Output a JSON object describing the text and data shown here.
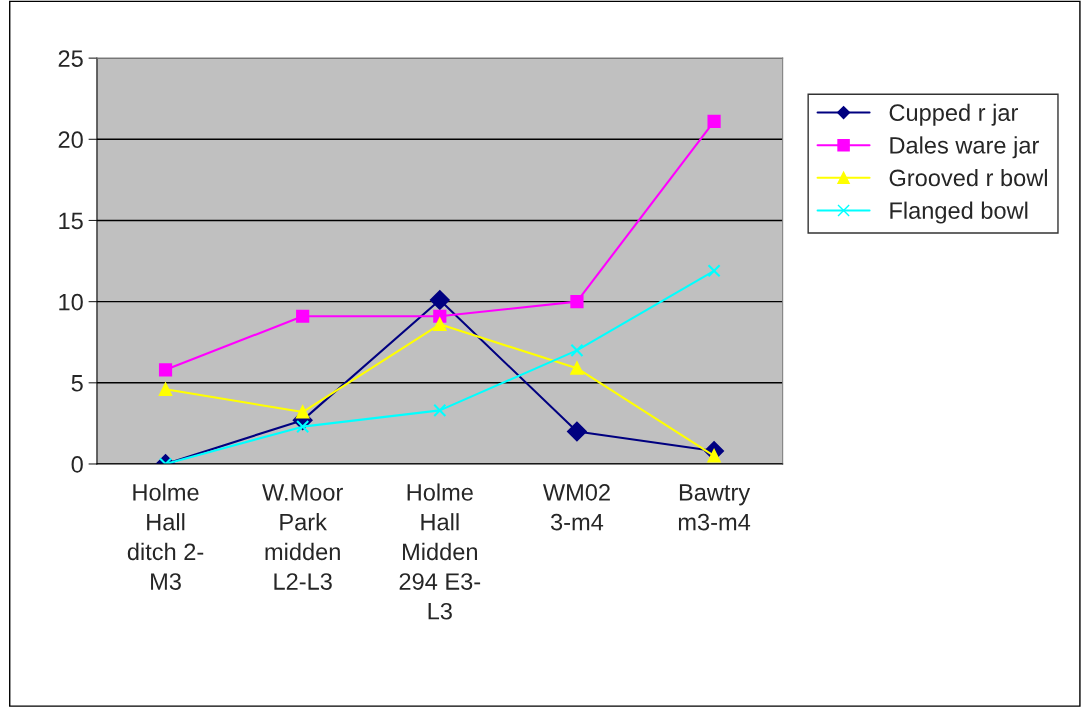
{
  "chart_data": {
    "type": "line",
    "categories": [
      "Holme\nHall\nditch 2-\nM3",
      "W.Moor\nPark\nmidden\nL2-L3",
      "Holme\nHall\nMidden\n294 E3-\nL3",
      "WM02\n3-m4",
      "Bawtry\nm3-m4"
    ],
    "series": [
      {
        "name": "Cupped r jar",
        "color": "#000080",
        "marker": "diamond",
        "values": [
          0,
          2.7,
          10.1,
          2.0,
          0.8
        ]
      },
      {
        "name": "Dales ware jar",
        "color": "#ff00ff",
        "marker": "square",
        "values": [
          5.8,
          9.1,
          9.1,
          10.0,
          21.1
        ]
      },
      {
        "name": "Grooved r bowl",
        "color": "#ffff00",
        "marker": "triangle",
        "values": [
          4.6,
          3.2,
          8.6,
          5.9,
          0.5
        ]
      },
      {
        "name": "Flanged bowl",
        "color": "#00ffff",
        "marker": "cross",
        "values": [
          0,
          2.3,
          3.3,
          7.0,
          11.9
        ]
      }
    ],
    "ylim": [
      0,
      25
    ],
    "yticks": [
      0,
      5,
      10,
      15,
      20,
      25
    ],
    "grid": "y",
    "legend": "right"
  }
}
